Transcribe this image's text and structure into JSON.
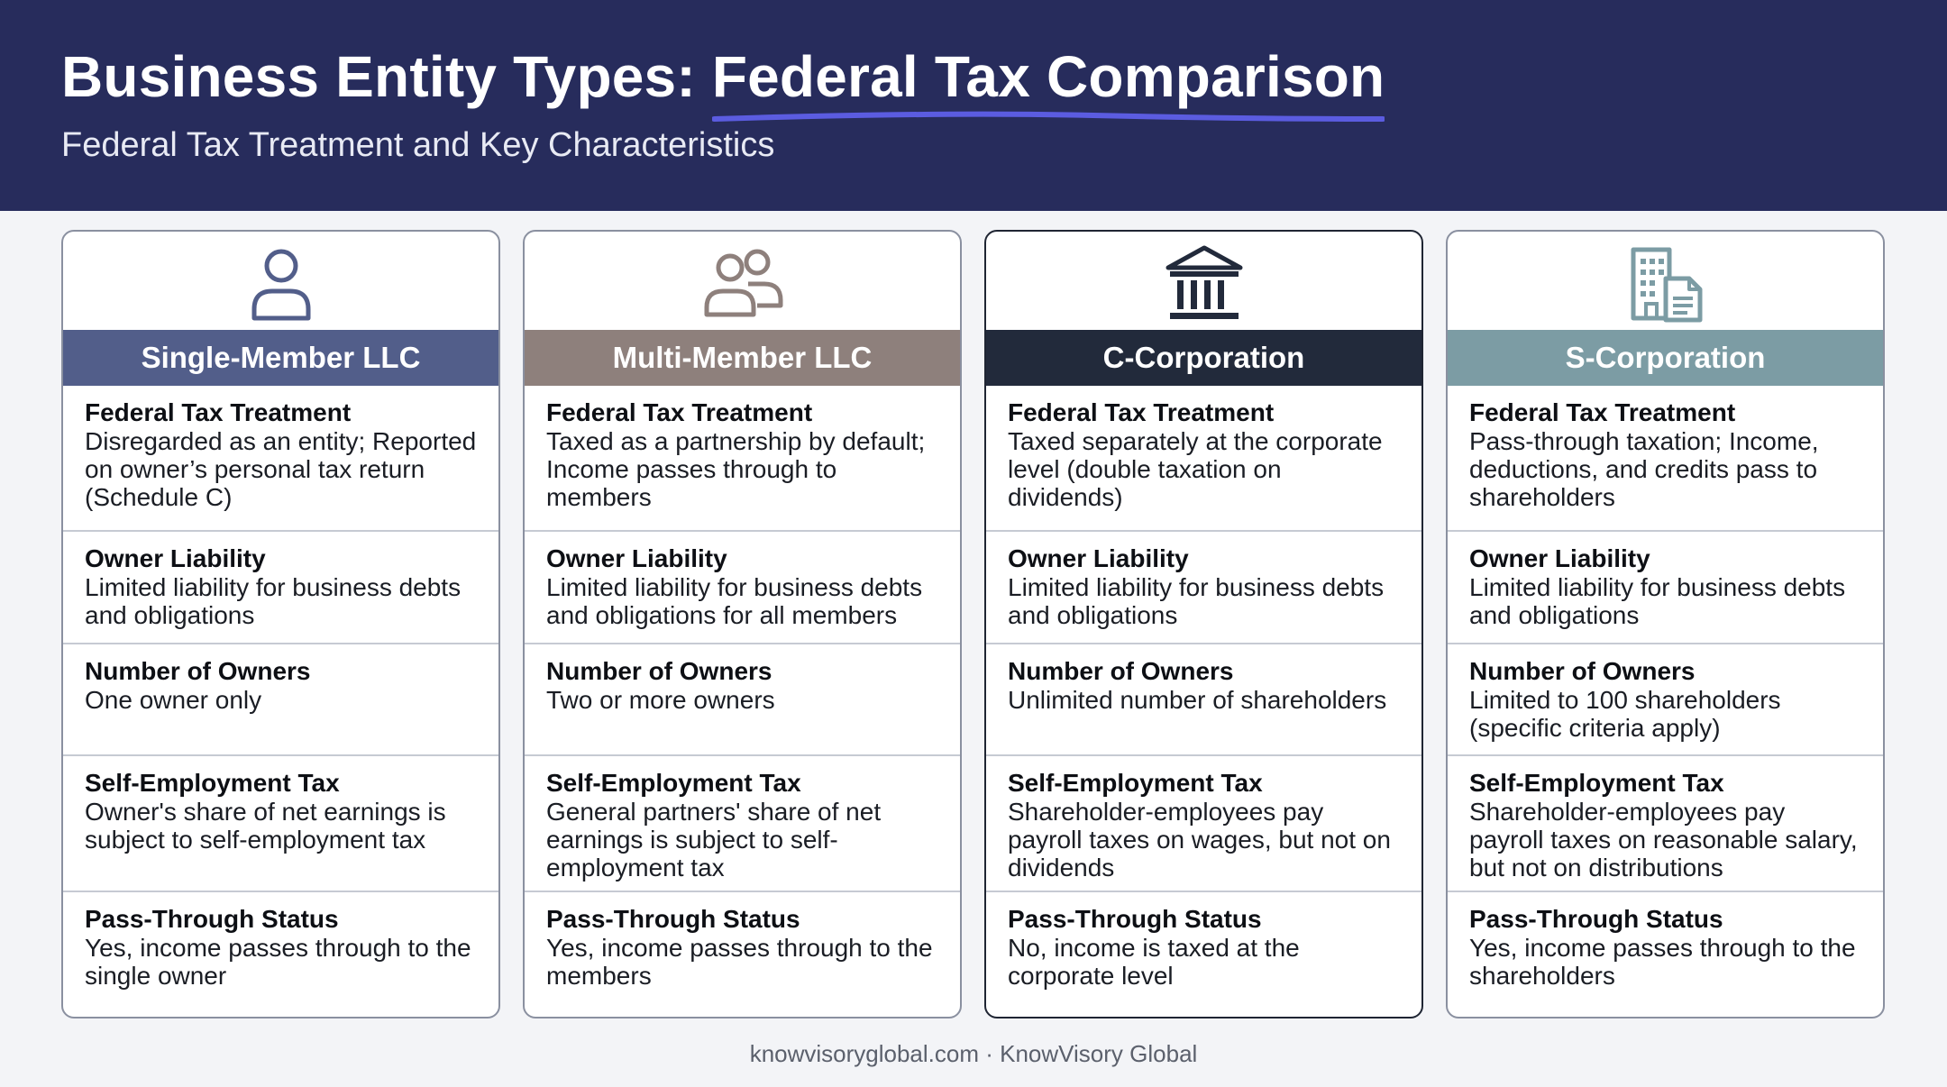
{
  "header": {
    "title_prefix": "Business Entity Types: ",
    "title_highlight": "Federal Tax Comparison",
    "subtitle": "Federal Tax Treatment and Key Characteristics",
    "underline_color": "#5b5ce0"
  },
  "cards": [
    {
      "icon": "person-icon",
      "name": "Single-Member LLC",
      "header_color": "#525e8a",
      "rows": [
        {
          "label": "Federal Tax Treatment",
          "text": "Disregarded as an entity; Reported on owner’s personal tax return (Schedule C)"
        },
        {
          "label": "Owner Liability",
          "text": "Limited liability for business debts and obligations"
        },
        {
          "label": "Number of Owners",
          "text": "One owner only"
        },
        {
          "label": "Self-Employment Tax",
          "text": "Owner's share of net earnings is subject to self-employment tax"
        },
        {
          "label": "Pass-Through Status",
          "text": "Yes, income passes through to the single owner"
        }
      ]
    },
    {
      "icon": "people-icon",
      "name": "Multi-Member LLC",
      "header_color": "#8e807c",
      "rows": [
        {
          "label": "Federal Tax Treatment",
          "text": "Taxed as a partnership by default; Income passes through to members"
        },
        {
          "label": "Owner Liability",
          "text": "Limited liability for business debts and obligations for all members"
        },
        {
          "label": "Number of Owners",
          "text": "Two or more owners"
        },
        {
          "label": "Self-Employment Tax",
          "text": "General partners' share of net earnings is subject to self-employment tax"
        },
        {
          "label": "Pass-Through Status",
          "text": "Yes, income passes through to the members"
        }
      ]
    },
    {
      "icon": "bank-building-icon",
      "name": "C-Corporation",
      "header_color": "#222a3b",
      "rows": [
        {
          "label": "Federal Tax Treatment",
          "text": "Taxed separately at the corporate level (double taxation on dividends)"
        },
        {
          "label": "Owner Liability",
          "text": "Limited liability for business debts and obligations"
        },
        {
          "label": "Number of Owners",
          "text": "Unlimited number of shareholders"
        },
        {
          "label": "Self-Employment Tax",
          "text": "Shareholder-employees pay payroll taxes on wages, but not on dividends"
        },
        {
          "label": "Pass-Through Status",
          "text": "No, income is taxed at the corporate level"
        }
      ]
    },
    {
      "icon": "office-document-icon",
      "name": "S-Corporation",
      "header_color": "#7c9ca4",
      "rows": [
        {
          "label": "Federal Tax Treatment",
          "text": "Pass-through taxation; Income, deductions, and credits pass to shareholders"
        },
        {
          "label": "Owner Liability",
          "text": "Limited liability for business debts and obligations"
        },
        {
          "label": "Number of Owners",
          "text": "Limited to 100 shareholders (specific criteria apply)"
        },
        {
          "label": "Self-Employment Tax",
          "text": "Shareholder-employees pay payroll taxes on reasonable salary, but not on distributions"
        },
        {
          "label": "Pass-Through Status",
          "text": "Yes, income passes through to the shareholders"
        }
      ]
    }
  ],
  "footer": {
    "text": "knowvisoryglobal.com · KnowVisory Global"
  }
}
